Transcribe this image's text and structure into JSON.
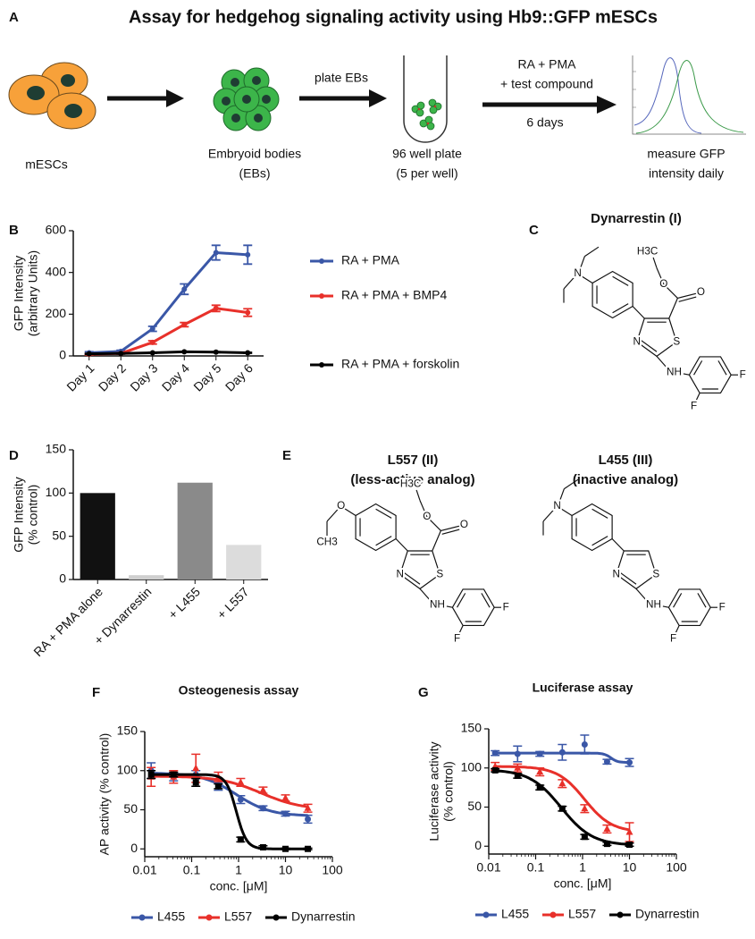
{
  "panel_labels": [
    "A",
    "B",
    "C",
    "D",
    "E",
    "F",
    "G"
  ],
  "schematic": {
    "title": "Assay for hedgehog signaling activity using Hb9::GFP mESCs",
    "cells": "mESCs",
    "ebs": [
      "Embryoid bodies",
      "(EBs)"
    ],
    "plate_step": "plate EBs",
    "plate": [
      "96 well plate",
      "(5 per well)"
    ],
    "treatment": [
      "RA + PMA",
      "+ test compound"
    ],
    "duration": "6 days",
    "readout": [
      "measure GFP",
      "intensity daily"
    ]
  },
  "structures": [
    {
      "title": [
        "Dynarrestin (I)"
      ],
      "atoms": {
        "ester_ch3": "H3C",
        "ester_o": "O",
        "carbonyl_o": "O",
        "amine": "N",
        "ring_s": "S",
        "ring_n": "N",
        "nh": "NH",
        "f_ortho": "F",
        "f_para": "F"
      }
    },
    {
      "title": [
        "L557 (II)",
        "(less-active analog)"
      ],
      "atoms": {
        "ester_ch3": "H3C",
        "ester_o": "O",
        "carbonyl_o": "O",
        "ether_o": "O",
        "ether_ch3": "CH3",
        "ring_s": "S",
        "ring_n": "N",
        "nh": "NH",
        "f_ortho": "F",
        "f_para": "F"
      }
    },
    {
      "title": [
        "L455 (III)",
        "(inactive analog)"
      ],
      "atoms": {
        "amine": "N",
        "ring_s": "S",
        "ring_n": "N",
        "nh": "NH",
        "f_ortho": "F",
        "f_para": "F"
      }
    }
  ],
  "chart_data": [
    {
      "type": "line",
      "categories": [
        "Day 1",
        "Day 2",
        "Day 3",
        "Day 4",
        "Day 5",
        "Day 6"
      ],
      "ylabel": [
        "GFP Intensity",
        "(arbitrary Units)"
      ],
      "ylim": [
        0,
        600
      ],
      "yticks": [
        0,
        200,
        400,
        600
      ],
      "legend": "right",
      "series": [
        {
          "name": "RA + PMA",
          "color": "#3a57a7",
          "values": [
            15,
            22,
            130,
            320,
            495,
            485
          ],
          "errors": [
            5,
            5,
            12,
            25,
            35,
            45
          ]
        },
        {
          "name": "RA + PMA + BMP4",
          "color": "#e8302a",
          "values": [
            8,
            12,
            65,
            150,
            228,
            208
          ],
          "errors": [
            3,
            3,
            8,
            10,
            15,
            18
          ]
        },
        {
          "name": "RA + PMA + forskolin",
          "color": "#000000",
          "values": [
            10,
            12,
            15,
            20,
            18,
            15
          ],
          "errors": [
            2,
            2,
            2,
            2,
            2,
            2
          ]
        }
      ]
    },
    {
      "type": "bar",
      "categories": [
        "RA + PMA alone",
        "+ Dynarrestin",
        "+ L455",
        "+ L557"
      ],
      "ylabel": [
        "GFP Intensity",
        "(% control)"
      ],
      "ylim": [
        0,
        150
      ],
      "yticks": [
        0,
        50,
        100,
        150
      ],
      "values": [
        100,
        5,
        112,
        40
      ],
      "colors": [
        "#111111",
        "#cfcfcf",
        "#8a8a8a",
        "#dcdcdc"
      ]
    },
    {
      "type": "dose-response",
      "title": "Osteogenesis assay",
      "xlabel": "conc. [μM]",
      "ylabel": "AP activity (% control)",
      "xscale": "log",
      "xlim": [
        0.01,
        100
      ],
      "xticks": [
        0.01,
        0.1,
        1,
        10,
        100
      ],
      "ylim": [
        -10,
        150
      ],
      "yticks": [
        0,
        50,
        100,
        150
      ],
      "legend": "bottom",
      "x": [
        0.0137,
        0.0412,
        0.123,
        0.37,
        1.11,
        3.33,
        10,
        30
      ],
      "series": [
        {
          "name": "L455",
          "color": "#3a57a7",
          "marker": "circle",
          "values": [
            100,
            92,
            95,
            80,
            63,
            52,
            45,
            38
          ],
          "errors": [
            10,
            5,
            5,
            5,
            5,
            3,
            3,
            5
          ],
          "fit": {
            "top": 97,
            "bottom": 42,
            "ec50": 0.9,
            "hill": 1.2
          }
        },
        {
          "name": "L557",
          "color": "#e8302a",
          "marker": "triangle",
          "values": [
            92,
            92,
            103,
            92,
            85,
            75,
            65,
            52
          ],
          "errors": [
            12,
            8,
            18,
            6,
            5,
            4,
            4,
            5
          ],
          "fit": {
            "top": 93,
            "bottom": 50,
            "ec50": 3,
            "hill": 1
          }
        },
        {
          "name": "Dynarrestin",
          "color": "#000000",
          "marker": "square",
          "values": [
            95,
            95,
            85,
            80,
            12,
            2,
            0,
            0
          ],
          "errors": [
            5,
            3,
            5,
            3,
            3,
            2,
            1,
            1
          ],
          "fit": {
            "top": 95,
            "bottom": 0,
            "ec50": 0.9,
            "hill": 4
          }
        }
      ]
    },
    {
      "type": "dose-response",
      "title": "Luciferase assay",
      "xlabel": "conc. [μM]",
      "ylabel": [
        "Luciferase activity",
        "(% control)"
      ],
      "xscale": "log",
      "xlim": [
        0.01,
        100
      ],
      "xticks": [
        0.01,
        0.1,
        1,
        10,
        100
      ],
      "ylim": [
        -10,
        150
      ],
      "yticks": [
        0,
        50,
        100,
        150
      ],
      "legend": "bottom",
      "x": [
        0.0137,
        0.0412,
        0.123,
        0.37,
        1.11,
        3.33,
        10
      ],
      "series": [
        {
          "name": "L455",
          "color": "#3a57a7",
          "marker": "circle",
          "values": [
            119,
            118,
            118,
            120,
            130,
            108,
            107
          ],
          "errors": [
            3,
            10,
            3,
            10,
            12,
            3,
            5
          ],
          "fit": {
            "top": 119,
            "bottom": 107,
            "ec50": 4,
            "hill": 6
          }
        },
        {
          "name": "L557",
          "color": "#e8302a",
          "marker": "triangle",
          "values": [
            102,
            100,
            95,
            80,
            48,
            22,
            18
          ],
          "errors": [
            5,
            5,
            5,
            5,
            5,
            5,
            12
          ],
          "fit": {
            "top": 102,
            "bottom": 18,
            "ec50": 1.1,
            "hill": 1.5
          }
        },
        {
          "name": "Dynarrestin",
          "color": "#000000",
          "marker": "square",
          "values": [
            97,
            90,
            75,
            48,
            12,
            3,
            2
          ],
          "errors": [
            2,
            3,
            3,
            3,
            3,
            2,
            2
          ],
          "fit": {
            "top": 98,
            "bottom": 1,
            "ec50": 0.35,
            "hill": 1.3
          }
        }
      ]
    }
  ]
}
